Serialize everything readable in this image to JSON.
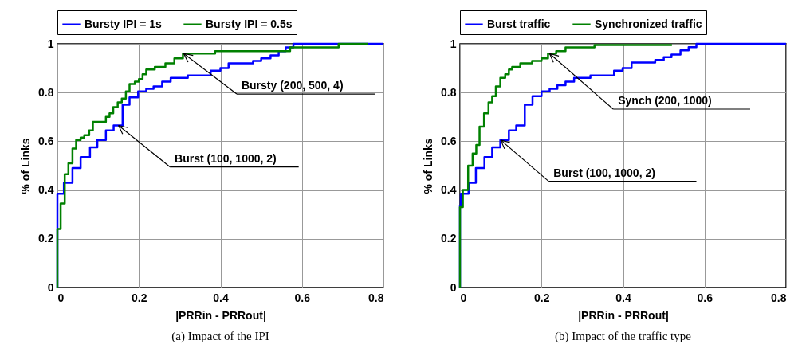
{
  "chart_data": [
    {
      "type": "step",
      "title": "(a) Impact of the IPI",
      "xlabel": "|PRRin - PRRout|",
      "ylabel": "% of Links",
      "xlim": [
        0,
        0.8
      ],
      "ylim": [
        0,
        1
      ],
      "xticks": [
        0,
        0.2,
        0.4,
        0.6,
        0.8
      ],
      "yticks": [
        0,
        0.2,
        0.4,
        0.6,
        0.8,
        1
      ],
      "grid": true,
      "legend": "top",
      "series": [
        {
          "name": "Bursty IPI = 1s",
          "color": "#0000ff",
          "x": [
            0,
            0,
            0.016,
            0.037,
            0.057,
            0.08,
            0.098,
            0.119,
            0.138,
            0.16,
            0.177,
            0.198,
            0.218,
            0.236,
            0.257,
            0.278,
            0.32,
            0.376,
            0.4,
            0.42,
            0.48,
            0.5,
            0.523,
            0.543,
            0.56,
            0.579,
            0.8
          ],
          "values": [
            0,
            0.385,
            0.43,
            0.49,
            0.535,
            0.575,
            0.605,
            0.645,
            0.665,
            0.75,
            0.78,
            0.805,
            0.815,
            0.825,
            0.845,
            0.86,
            0.87,
            0.89,
            0.9,
            0.92,
            0.93,
            0.94,
            0.953,
            0.97,
            0.985,
            1,
            1
          ]
        },
        {
          "name": "Bursty IPI = 0.5s",
          "color": "#008000",
          "x": [
            0,
            0,
            0.008,
            0.018,
            0.027,
            0.037,
            0.046,
            0.057,
            0.066,
            0.078,
            0.087,
            0.119,
            0.128,
            0.137,
            0.148,
            0.158,
            0.168,
            0.177,
            0.19,
            0.2,
            0.209,
            0.218,
            0.239,
            0.265,
            0.287,
            0.308,
            0.387,
            0.571,
            0.69,
            0.762
          ],
          "values": [
            0,
            0.24,
            0.345,
            0.465,
            0.51,
            0.57,
            0.605,
            0.615,
            0.625,
            0.645,
            0.68,
            0.7,
            0.715,
            0.74,
            0.76,
            0.775,
            0.805,
            0.835,
            0.845,
            0.855,
            0.875,
            0.895,
            0.905,
            0.92,
            0.94,
            0.96,
            0.97,
            0.985,
            1,
            1
          ]
        }
      ],
      "annotations": [
        {
          "text": "Bursty (200, 500, 4)",
          "x": 0.31,
          "y": 0.96
        },
        {
          "text": "Burst (100, 1000, 2)",
          "x": 0.15,
          "y": 0.665
        }
      ]
    },
    {
      "type": "step",
      "title": "(b) Impact of the traffic type",
      "xlabel": "|PRRin - PRRout|",
      "ylabel": "% of Links",
      "xlim": [
        0,
        0.8
      ],
      "ylim": [
        0,
        1
      ],
      "xticks": [
        0,
        0.2,
        0.4,
        0.6,
        0.8
      ],
      "yticks": [
        0,
        0.2,
        0.4,
        0.6,
        0.8,
        1
      ],
      "grid": true,
      "legend": "top",
      "series": [
        {
          "name": "Burst traffic",
          "color": "#0000ff",
          "x": [
            0,
            0,
            0.002,
            0.021,
            0.039,
            0.06,
            0.079,
            0.099,
            0.12,
            0.138,
            0.159,
            0.178,
            0.2,
            0.22,
            0.239,
            0.259,
            0.28,
            0.32,
            0.378,
            0.399,
            0.421,
            0.479,
            0.5,
            0.519,
            0.541,
            0.561,
            0.58,
            0.8
          ],
          "values": [
            0,
            0.335,
            0.385,
            0.43,
            0.49,
            0.535,
            0.575,
            0.605,
            0.645,
            0.665,
            0.75,
            0.785,
            0.805,
            0.815,
            0.83,
            0.845,
            0.86,
            0.87,
            0.89,
            0.9,
            0.923,
            0.934,
            0.945,
            0.956,
            0.973,
            0.986,
            1,
            1
          ]
        },
        {
          "name": "Synchronized traffic",
          "color": "#008000",
          "x": [
            0,
            0,
            0.007,
            0.02,
            0.031,
            0.04,
            0.048,
            0.059,
            0.07,
            0.079,
            0.088,
            0.099,
            0.111,
            0.12,
            0.128,
            0.148,
            0.177,
            0.2,
            0.216,
            0.236,
            0.259,
            0.33,
            0.52
          ],
          "values": [
            0,
            0.33,
            0.4,
            0.5,
            0.55,
            0.585,
            0.66,
            0.715,
            0.76,
            0.785,
            0.825,
            0.86,
            0.875,
            0.895,
            0.905,
            0.92,
            0.93,
            0.94,
            0.96,
            0.97,
            0.985,
            0.995,
            0.995
          ]
        }
      ],
      "annotations": [
        {
          "text": "Synch (200, 1000)",
          "x": 0.22,
          "y": 0.96
        },
        {
          "text": "Burst (100, 1000, 2)",
          "x": 0.1,
          "y": 0.605
        }
      ]
    }
  ]
}
